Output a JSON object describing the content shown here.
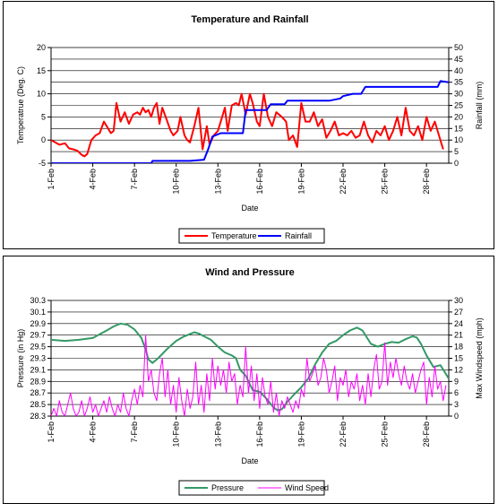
{
  "chart_data": [
    {
      "type": "line",
      "title": "Temperature and Rainfall",
      "xlabel": "Date",
      "ylabel_left": "Temperatrue (Deg. C)",
      "ylabel_right": "Rainfall (mm)",
      "x_range": [
        1,
        29.6
      ],
      "ylim_left": [
        -5,
        20
      ],
      "ylim_right": [
        0,
        50
      ],
      "yticks_left": [
        -5,
        0,
        5,
        10,
        15,
        20
      ],
      "yticks_right": [
        0,
        5,
        10,
        15,
        20,
        25,
        30,
        35,
        40,
        45,
        50
      ],
      "x_ticks": [
        {
          "x": 1,
          "label": "1-Feb"
        },
        {
          "x": 4,
          "label": "4-Feb"
        },
        {
          "x": 7,
          "label": "7-Feb"
        },
        {
          "x": 10,
          "label": "10-Feb"
        },
        {
          "x": 13,
          "label": "13-Feb"
        },
        {
          "x": 16,
          "label": "16-Feb"
        },
        {
          "x": 19,
          "label": "19-Feb"
        },
        {
          "x": 22,
          "label": "22-Feb"
        },
        {
          "x": 25,
          "label": "25-Feb"
        },
        {
          "x": 28,
          "label": "28-Feb"
        }
      ],
      "grid": true,
      "legend_position": "bottom",
      "series": [
        {
          "name": "Temperature",
          "axis": "left",
          "color": "#ff0000",
          "x": [
            1.0,
            1.3,
            1.6,
            2.0,
            2.3,
            2.6,
            2.9,
            3.2,
            3.4,
            3.6,
            3.9,
            4.2,
            4.5,
            4.8,
            5.0,
            5.3,
            5.5,
            5.7,
            6.0,
            6.3,
            6.6,
            6.9,
            7.2,
            7.4,
            7.6,
            7.8,
            8.0,
            8.2,
            8.4,
            8.6,
            8.8,
            9.0,
            9.3,
            9.6,
            9.8,
            10.1,
            10.3,
            10.6,
            10.8,
            11.0,
            11.3,
            11.6,
            11.9,
            12.2,
            12.4,
            12.7,
            13.0,
            13.3,
            13.5,
            13.7,
            14.0,
            14.3,
            14.5,
            14.7,
            15.0,
            15.3,
            15.5,
            15.8,
            16.0,
            16.3,
            16.6,
            16.9,
            17.2,
            17.4,
            17.6,
            17.9,
            18.1,
            18.4,
            18.7,
            19.0,
            19.3,
            19.6,
            19.9,
            20.2,
            20.5,
            20.8,
            21.1,
            21.4,
            21.7,
            22.0,
            22.3,
            22.6,
            22.9,
            23.2,
            23.5,
            23.8,
            24.1,
            24.4,
            24.7,
            25.0,
            25.3,
            25.6,
            25.9,
            26.2,
            26.5,
            26.8,
            27.1,
            27.4,
            27.7,
            28.0,
            28.3,
            28.6,
            28.9,
            29.2
          ],
          "values": [
            0,
            -0.5,
            -1,
            -0.7,
            -1.8,
            -2,
            -2.3,
            -3.2,
            -3.5,
            -3,
            0,
            1,
            1.5,
            4,
            3,
            1.5,
            2,
            8,
            4,
            6,
            3.5,
            5.5,
            6,
            5.5,
            7,
            6,
            6.5,
            5,
            7,
            8,
            3.5,
            7,
            4.5,
            2,
            1,
            2,
            5,
            1,
            0,
            -0.5,
            3,
            7,
            -2,
            3,
            -1,
            1,
            2,
            5,
            7,
            2,
            7.5,
            8,
            7.5,
            10,
            5.5,
            10,
            8,
            4,
            3,
            10,
            5,
            3,
            6,
            5.5,
            5,
            4,
            0,
            1,
            -1.5,
            8,
            4,
            4,
            6,
            3,
            4.5,
            0.5,
            2,
            4,
            1,
            1.5,
            1,
            2,
            0.5,
            1,
            4,
            1,
            -0.5,
            2,
            1,
            3,
            0,
            2,
            5,
            1,
            7,
            2,
            1,
            3,
            0,
            5,
            2,
            4,
            1,
            -2
          ]
        },
        {
          "name": "Rainfall",
          "axis": "right",
          "color": "#0000ff",
          "x": [
            1.0,
            4.0,
            7.0,
            8.2,
            8.3,
            11.0,
            12.0,
            12.3,
            12.6,
            13.2,
            14.8,
            15.0,
            15.4,
            16.5,
            16.8,
            17.8,
            18.0,
            18.6,
            21.0,
            21.8,
            22.0,
            22.7,
            23.3,
            23.6,
            26.0,
            27.5,
            28.8,
            29.0,
            29.6
          ],
          "values": [
            0,
            0,
            0,
            0,
            1,
            1,
            1.5,
            6,
            11.5,
            13,
            13,
            23,
            23,
            23,
            25.5,
            25.5,
            27,
            27,
            27,
            28,
            29,
            30,
            30,
            33,
            33,
            33,
            33,
            35.5,
            35
          ]
        }
      ]
    },
    {
      "type": "line",
      "title": "Wind and Pressure",
      "xlabel": "Date",
      "ylabel_left": "Pressure (in Hg)",
      "ylabel_right": "Max Windspeed (mph)",
      "x_range": [
        1,
        29.6
      ],
      "ylim_left": [
        28.3,
        30.3
      ],
      "ylim_right": [
        0,
        30
      ],
      "yticks_left": [
        28.3,
        28.5,
        28.7,
        28.9,
        29.1,
        29.3,
        29.5,
        29.7,
        29.9,
        30.1,
        30.3
      ],
      "yticks_right": [
        0,
        3,
        6,
        9,
        12,
        15,
        18,
        21,
        24,
        27,
        30
      ],
      "x_ticks": [
        {
          "x": 1,
          "label": "1-Feb"
        },
        {
          "x": 4,
          "label": "4-Feb"
        },
        {
          "x": 7,
          "label": "7-Feb"
        },
        {
          "x": 10,
          "label": "10-Feb"
        },
        {
          "x": 13,
          "label": "13-Feb"
        },
        {
          "x": 16,
          "label": "16-Feb"
        },
        {
          "x": 19,
          "label": "19-Feb"
        },
        {
          "x": 22,
          "label": "22-Feb"
        },
        {
          "x": 25,
          "label": "25-Feb"
        },
        {
          "x": 28,
          "label": "28-Feb"
        }
      ],
      "grid": true,
      "legend_position": "bottom",
      "series": [
        {
          "name": "Pressure",
          "axis": "left",
          "color": "#339966",
          "x": [
            1.0,
            2.0,
            3.0,
            4.0,
            5.0,
            5.5,
            6.0,
            6.5,
            7.0,
            7.5,
            7.8,
            8.0,
            8.3,
            8.7,
            9.3,
            10.0,
            10.5,
            11.0,
            11.3,
            11.6,
            12.0,
            12.5,
            13.0,
            13.5,
            14.0,
            14.3,
            14.6,
            15.0,
            15.5,
            16.0,
            16.5,
            17.0,
            17.3,
            17.6,
            18.0,
            18.5,
            19.0,
            19.5,
            20.0,
            20.5,
            21.0,
            21.5,
            22.0,
            22.5,
            23.0,
            23.4,
            24.0,
            24.5,
            25.0,
            25.5,
            26.0,
            26.5,
            27.0,
            27.3,
            27.6,
            28.0,
            28.5,
            29.0,
            29.6
          ],
          "values": [
            29.62,
            29.6,
            29.62,
            29.65,
            29.78,
            29.85,
            29.9,
            29.88,
            29.8,
            29.65,
            29.45,
            29.28,
            29.22,
            29.3,
            29.45,
            29.6,
            29.67,
            29.72,
            29.75,
            29.73,
            29.68,
            29.62,
            29.5,
            29.4,
            29.35,
            29.3,
            29.1,
            29.0,
            28.75,
            28.72,
            28.6,
            28.45,
            28.4,
            28.42,
            28.55,
            28.68,
            28.8,
            28.95,
            29.2,
            29.4,
            29.55,
            29.6,
            29.7,
            29.78,
            29.83,
            29.78,
            29.55,
            29.5,
            29.55,
            29.58,
            29.57,
            29.63,
            29.68,
            29.66,
            29.55,
            29.35,
            29.15,
            29.18,
            28.95
          ]
        },
        {
          "name": "Wind Speed",
          "axis": "right",
          "color": "#ff00ff",
          "x": [
            1.0,
            1.2,
            1.4,
            1.6,
            1.8,
            2.0,
            2.2,
            2.4,
            2.6,
            2.8,
            3.0,
            3.2,
            3.4,
            3.6,
            3.8,
            4.0,
            4.2,
            4.4,
            4.6,
            4.8,
            5.0,
            5.2,
            5.4,
            5.6,
            5.8,
            6.0,
            6.2,
            6.4,
            6.6,
            6.8,
            7.0,
            7.2,
            7.4,
            7.6,
            7.8,
            8.0,
            8.2,
            8.4,
            8.6,
            8.8,
            9.0,
            9.2,
            9.4,
            9.6,
            9.8,
            10.0,
            10.2,
            10.4,
            10.6,
            10.8,
            11.0,
            11.2,
            11.4,
            11.6,
            11.8,
            12.0,
            12.2,
            12.4,
            12.6,
            12.8,
            13.0,
            13.2,
            13.4,
            13.6,
            13.8,
            14.0,
            14.2,
            14.4,
            14.6,
            14.8,
            15.0,
            15.2,
            15.4,
            15.6,
            15.8,
            16.0,
            16.2,
            16.4,
            16.6,
            16.8,
            17.0,
            17.2,
            17.4,
            17.6,
            17.8,
            18.0,
            18.2,
            18.4,
            18.6,
            18.8,
            19.0,
            19.2,
            19.4,
            19.6,
            19.8,
            20.0,
            20.2,
            20.4,
            20.6,
            20.8,
            21.0,
            21.2,
            21.4,
            21.6,
            21.8,
            22.0,
            22.2,
            22.4,
            22.6,
            22.8,
            23.0,
            23.2,
            23.4,
            23.6,
            23.8,
            24.0,
            24.2,
            24.4,
            24.6,
            24.8,
            25.0,
            25.2,
            25.4,
            25.6,
            25.8,
            26.0,
            26.2,
            26.4,
            26.6,
            26.8,
            27.0,
            27.2,
            27.4,
            27.6,
            27.8,
            28.0,
            28.2,
            28.4,
            28.6,
            28.8,
            29.0,
            29.2,
            29.4
          ],
          "values": [
            0,
            2,
            0,
            4,
            1,
            0,
            3,
            6,
            2,
            0,
            1,
            4,
            0,
            2,
            5,
            1,
            3,
            0,
            2,
            4,
            1,
            5,
            2,
            0,
            3,
            1,
            6,
            2,
            0,
            4,
            7,
            3,
            8,
            5,
            21,
            9,
            12,
            6,
            4,
            11,
            15,
            5,
            12,
            3,
            8,
            1,
            10,
            4,
            0,
            7,
            2,
            5,
            14,
            3,
            8,
            1,
            11,
            4,
            15,
            7,
            13,
            8,
            12,
            6,
            14,
            9,
            11,
            3,
            8,
            5,
            18,
            6,
            13,
            4,
            11,
            2,
            10,
            5,
            3,
            9,
            1,
            6,
            0,
            4,
            2,
            5,
            3,
            1,
            4,
            2,
            7,
            5,
            15,
            9,
            11,
            13,
            8,
            10,
            15,
            12,
            6,
            9,
            13,
            4,
            10,
            8,
            12,
            5,
            9,
            7,
            11,
            4,
            8,
            3,
            11,
            5,
            12,
            16,
            7,
            9,
            19,
            8,
            14,
            10,
            15,
            11,
            8,
            13,
            9,
            7,
            11,
            6,
            9,
            12,
            14,
            3,
            10,
            5,
            13,
            7,
            9,
            4,
            8
          ]
        }
      ]
    }
  ]
}
